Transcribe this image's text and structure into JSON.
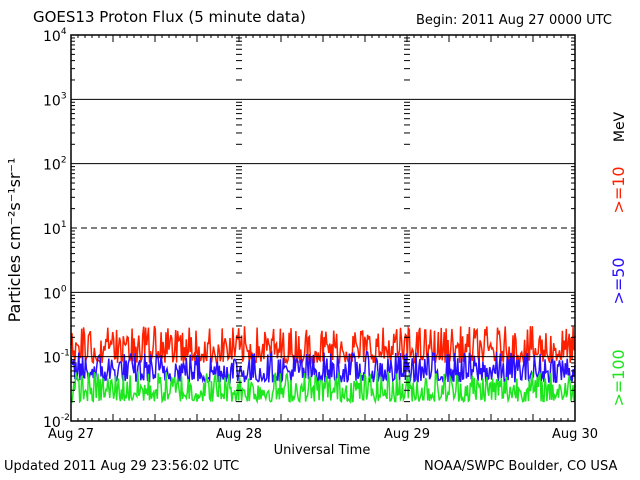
{
  "header": {
    "title": "GOES13 Proton Flux (5 minute data)",
    "begin": "Begin: 2011 Aug 27 0000 UTC"
  },
  "footer": {
    "updated": "Updated 2011 Aug 29 23:56:02 UTC",
    "credit": "NOAA/SWPC Boulder, CO USA"
  },
  "chart_data": {
    "type": "line",
    "title": "GOES13 Proton Flux (5 minute data)",
    "xlabel": "Universal Time",
    "ylabel": "Particles cm⁻²s⁻¹sr⁻¹",
    "yscale": "log",
    "ylim": [
      0.01,
      10000
    ],
    "yticks": [
      {
        "base": "10",
        "exp": "-2"
      },
      {
        "base": "10",
        "exp": "-1"
      },
      {
        "base": "10",
        "exp": "0"
      },
      {
        "base": "10",
        "exp": "1"
      },
      {
        "base": "10",
        "exp": "2"
      },
      {
        "base": "10",
        "exp": "3"
      },
      {
        "base": "10",
        "exp": "4"
      }
    ],
    "xlim": [
      "2011-08-27",
      "2011-08-30"
    ],
    "xticks": [
      "Aug 27",
      "Aug 28",
      "Aug 29",
      "Aug 30"
    ],
    "thresholds": [
      {
        "value": 10,
        "style": "dashed"
      },
      {
        "value": 0.1,
        "style": "solid"
      }
    ],
    "units_label": "MeV",
    "series": [
      {
        "name": ">=10",
        "color": "#ff2000",
        "typical_range": [
          0.08,
          0.3
        ]
      },
      {
        "name": ">=50",
        "color": "#2a10ff",
        "typical_range": [
          0.04,
          0.12
        ]
      },
      {
        "name": ">=100",
        "color": "#1ee61e",
        "typical_range": [
          0.02,
          0.06
        ]
      }
    ]
  }
}
